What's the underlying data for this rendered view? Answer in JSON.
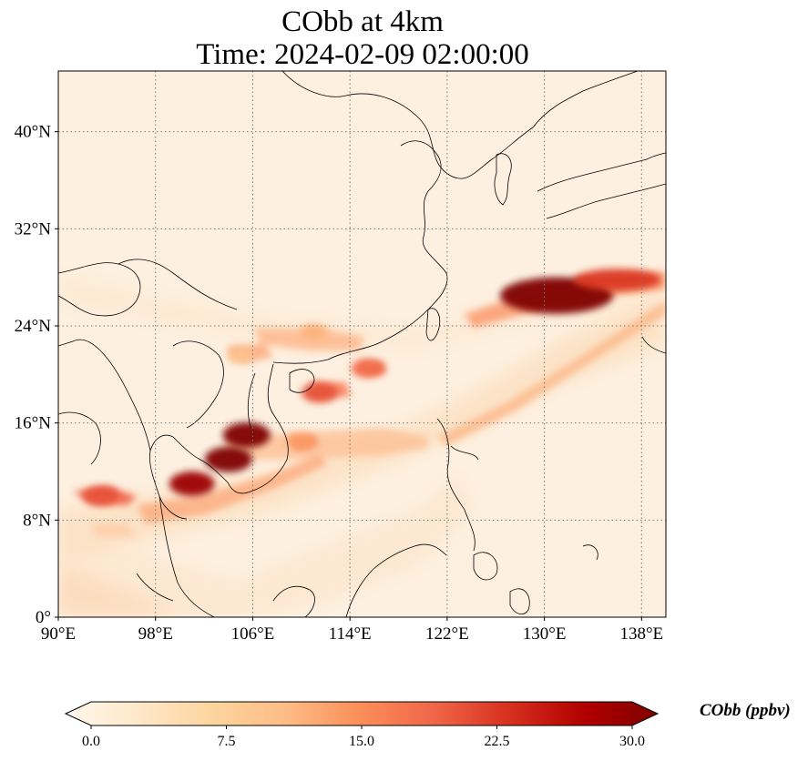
{
  "title": {
    "line1": "CObb at 4km",
    "line2": "Time: 2024-02-09 02:00:00"
  },
  "map": {
    "projection": "PlateCarree",
    "lon_range": [
      90,
      140
    ],
    "lat_range": [
      0,
      45
    ],
    "lon_ticks": [
      {
        "value": 90,
        "label": "90°E"
      },
      {
        "value": 98,
        "label": "98°E"
      },
      {
        "value": 106,
        "label": "106°E"
      },
      {
        "value": 114,
        "label": "114°E"
      },
      {
        "value": 122,
        "label": "122°E"
      },
      {
        "value": 130,
        "label": "130°E"
      },
      {
        "value": 138,
        "label": "138°E"
      }
    ],
    "lat_ticks": [
      {
        "value": 0,
        "label": "0°"
      },
      {
        "value": 8,
        "label": "8°N"
      },
      {
        "value": 16,
        "label": "16°N"
      },
      {
        "value": 24,
        "label": "24°N"
      },
      {
        "value": 32,
        "label": "32°N"
      },
      {
        "value": 40,
        "label": "40°N"
      }
    ],
    "gridlines": "dotted",
    "background_color": "#fdf0e0",
    "coastline_color": "#000000",
    "plumes": [
      {
        "name": "east-china-sea-core",
        "lon": 131,
        "lat": 26.5,
        "value": 30
      },
      {
        "name": "east-china-sea-tail",
        "lon": 136,
        "lat": 27.8,
        "value": 22
      },
      {
        "name": "cambodia-core",
        "lon": 104,
        "lat": 13,
        "value": 30
      },
      {
        "name": "cambodia-north",
        "lon": 105.5,
        "lat": 15,
        "value": 30
      },
      {
        "name": "thailand-gulf",
        "lon": 101,
        "lat": 11,
        "value": 28
      },
      {
        "name": "andaman-sea",
        "lon": 93.5,
        "lat": 10,
        "value": 20
      },
      {
        "name": "hainan-east",
        "lon": 111.5,
        "lat": 18.5,
        "value": 20
      },
      {
        "name": "south-china-sea-north",
        "lon": 115.5,
        "lat": 20.5,
        "value": 18
      },
      {
        "name": "south-china-coast",
        "lon": 111,
        "lat": 23.5,
        "value": 12
      },
      {
        "name": "vietnam-north",
        "lon": 105,
        "lat": 21.5,
        "value": 10
      },
      {
        "name": "vietnam-central",
        "lon": 110,
        "lat": 14.5,
        "value": 14
      }
    ]
  },
  "colorbar": {
    "label": "CObb (ppbv)",
    "min": 0.0,
    "max": 30.0,
    "extend": "both",
    "colormap": "OrRd",
    "stops": [
      "#fff7ec",
      "#fee8c8",
      "#fdd49e",
      "#fdbb84",
      "#fc8d59",
      "#ef6548",
      "#d7301f",
      "#b30000",
      "#7f0000"
    ],
    "ticks": [
      {
        "value": 0.0,
        "label": "0.0"
      },
      {
        "value": 7.5,
        "label": "7.5"
      },
      {
        "value": 15.0,
        "label": "15.0"
      },
      {
        "value": 22.5,
        "label": "22.5"
      },
      {
        "value": 30.0,
        "label": "30.0"
      }
    ]
  }
}
